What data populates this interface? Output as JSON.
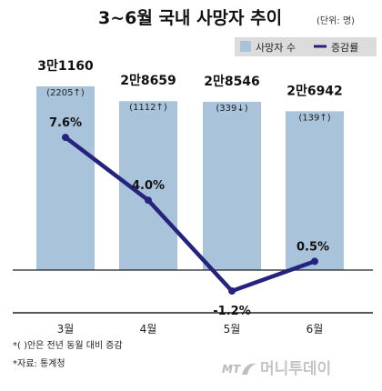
{
  "title": "3~6월 국내 사망자 추이",
  "unit": "(단위: 명)",
  "legend": {
    "bar_label": "사망자 수",
    "line_label": "증감률"
  },
  "colors": {
    "bar": "#a9c3da",
    "line": "#24247f",
    "legend_bg": "#dcdcdc",
    "axis": "#222222"
  },
  "chart_data": {
    "type": "bar",
    "categories": [
      "3월",
      "4월",
      "5월",
      "6월"
    ],
    "bar_values": [
      31160,
      28659,
      28546,
      26942
    ],
    "bar_labels": [
      "3만1160",
      "2만8659",
      "2만8546",
      "2만6942"
    ],
    "change_labels": [
      "(2205↑)",
      "(1112↑)",
      "(339↓)",
      "(139↑)"
    ],
    "line_values": [
      7.6,
      4.0,
      -1.2,
      0.5
    ],
    "line_labels": [
      "7.6%",
      "4.0%",
      "-1.2%",
      "0.5%"
    ]
  },
  "notes": [
    "*( )안은 전년 동월 대비 증감",
    "*자료: 통계청"
  ],
  "logo": {
    "mt": "MT",
    "name": "머니투데이"
  }
}
